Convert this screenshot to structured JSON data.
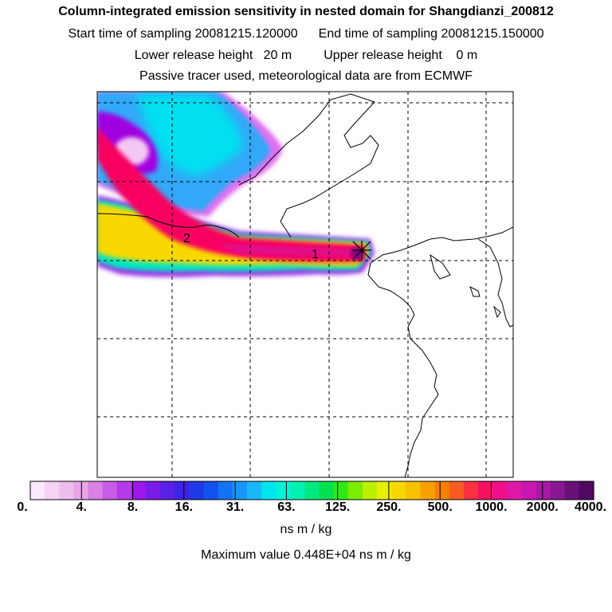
{
  "header": {
    "title": "Column-integrated emission sensitivity in nested domain for Shangdianzi_200812",
    "start_label": "Start time of sampling 20081215.120000",
    "end_label": "End time of sampling 20081215.150000",
    "lower_label": "Lower release height   20 m",
    "upper_label": "Upper release height    0 m",
    "tracer_note": "Passive tracer used, meteorological data are from ECMWF"
  },
  "map": {
    "markers": [
      {
        "label": "1"
      },
      {
        "label": "2"
      }
    ],
    "colors": {
      "light_purple": "#f4c8f4",
      "violet": "#a000e0",
      "cyan": "#00e0f0",
      "sky": "#30a8f8",
      "yellow": "#f8e000",
      "red_pink": "#f80060",
      "dark_purple": "#800080"
    }
  },
  "colorbar": {
    "colors": [
      "#fde9fd",
      "#f6d2f6",
      "#eebdee",
      "#e6a6e6",
      "#d97fe6",
      "#c85be8",
      "#b43aea",
      "#9e18ea",
      "#7a1ce8",
      "#5a20e8",
      "#3c24e4",
      "#2038e8",
      "#1452f0",
      "#1472f4",
      "#1896f8",
      "#18b8f8",
      "#00e4f0",
      "#00f4d8",
      "#00f0b0",
      "#00e880",
      "#00e050",
      "#30e818",
      "#7cec00",
      "#bcf000",
      "#e8f000",
      "#f8d800",
      "#f8c000",
      "#f8a000",
      "#f88000",
      "#f85c20",
      "#f83040",
      "#f81060",
      "#f0108c",
      "#e018a8",
      "#c818b0",
      "#a818a8",
      "#881890",
      "#681078",
      "#500860"
    ],
    "ticks": [
      "0.",
      "4.",
      "8.",
      "16.",
      "31.",
      "63.",
      "125.",
      "250.",
      "500.",
      "1000.",
      "2000.",
      "4000."
    ],
    "units": "ns m / kg",
    "max_value_text": "Maximum value  0.448E+04 ns m / kg"
  }
}
